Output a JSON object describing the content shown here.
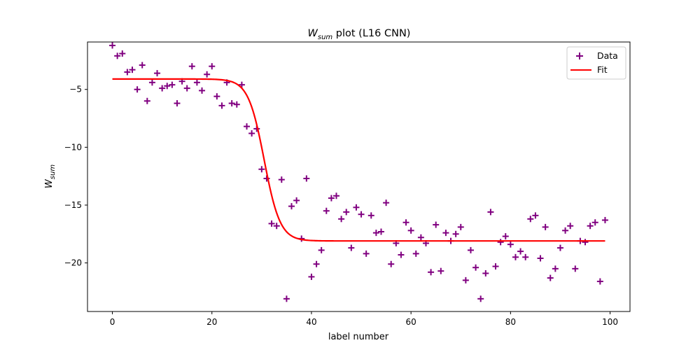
{
  "chart_data": {
    "type": "scatter",
    "title_main": "W",
    "title_sub": "sum",
    "title_rest": " plot (L16 CNN)",
    "xlabel": "label number",
    "ylabel_main": "W",
    "ylabel_sub": "sum",
    "xlim": [
      -5,
      104
    ],
    "ylim": [
      -24.2,
      -0.9
    ],
    "xticks": [
      0,
      20,
      40,
      60,
      80,
      100
    ],
    "yticks": [
      -5,
      -10,
      -15,
      -20
    ],
    "grid": false,
    "legend_position": "top-right",
    "colors": {
      "data": "#800080",
      "fit": "#ff0000"
    },
    "series": [
      {
        "name": "Data",
        "kind": "scatter",
        "marker": "plus",
        "x": [
          0,
          1,
          2,
          3,
          4,
          5,
          6,
          7,
          8,
          9,
          10,
          11,
          12,
          13,
          14,
          15,
          16,
          17,
          18,
          19,
          20,
          21,
          22,
          23,
          24,
          25,
          26,
          27,
          28,
          29,
          30,
          31,
          32,
          33,
          34,
          35,
          36,
          37,
          38,
          39,
          40,
          41,
          42,
          43,
          44,
          45,
          46,
          47,
          48,
          49,
          50,
          51,
          52,
          53,
          54,
          55,
          56,
          57,
          58,
          59,
          60,
          61,
          62,
          63,
          64,
          65,
          66,
          67,
          68,
          69,
          70,
          71,
          72,
          73,
          74,
          75,
          76,
          77,
          78,
          79,
          80,
          81,
          82,
          83,
          84,
          85,
          86,
          87,
          88,
          89,
          90,
          91,
          92,
          93,
          94,
          95,
          96,
          97,
          98,
          99
        ],
        "y": [
          -1.2,
          -2.1,
          -1.9,
          -3.5,
          -3.3,
          -5.0,
          -2.9,
          -6.0,
          -4.4,
          -3.6,
          -4.9,
          -4.7,
          -4.6,
          -6.2,
          -4.3,
          -4.9,
          -3.0,
          -4.4,
          -5.1,
          -3.7,
          -3.0,
          -5.6,
          -6.4,
          -4.4,
          -6.2,
          -6.3,
          -4.6,
          -8.2,
          -8.8,
          -8.4,
          -11.9,
          -12.7,
          -16.6,
          -16.8,
          -12.8,
          -23.1,
          -15.1,
          -14.6,
          -17.9,
          -12.7,
          -21.2,
          -20.1,
          -18.9,
          -15.5,
          -14.4,
          -14.2,
          -16.2,
          -15.6,
          -18.7,
          -15.2,
          -15.8,
          -19.2,
          -15.9,
          -17.4,
          -17.3,
          -14.8,
          -20.1,
          -18.3,
          -19.3,
          -16.5,
          -17.2,
          -19.2,
          -17.8,
          -18.3,
          -20.8,
          -16.7,
          -20.7,
          -17.4,
          -18.1,
          -17.5,
          -16.9,
          -21.5,
          -18.9,
          -20.4,
          -23.1,
          -20.9,
          -15.6,
          -20.3,
          -18.2,
          -17.7,
          -18.4,
          -19.5,
          -19.0,
          -19.5,
          -16.2,
          -15.9,
          -19.6,
          -16.9,
          -21.3,
          -20.5,
          -18.7,
          -17.2,
          -16.8,
          -20.5,
          -18.1,
          -18.2,
          -16.8,
          -16.5,
          -21.6,
          -16.3
        ]
      },
      {
        "name": "Fit",
        "kind": "line",
        "curve": "sigmoid",
        "params": {
          "upper": -4.1,
          "lower": -18.1,
          "center": 30.5,
          "width": 1.6
        },
        "x_range": [
          0,
          99
        ]
      }
    ]
  }
}
